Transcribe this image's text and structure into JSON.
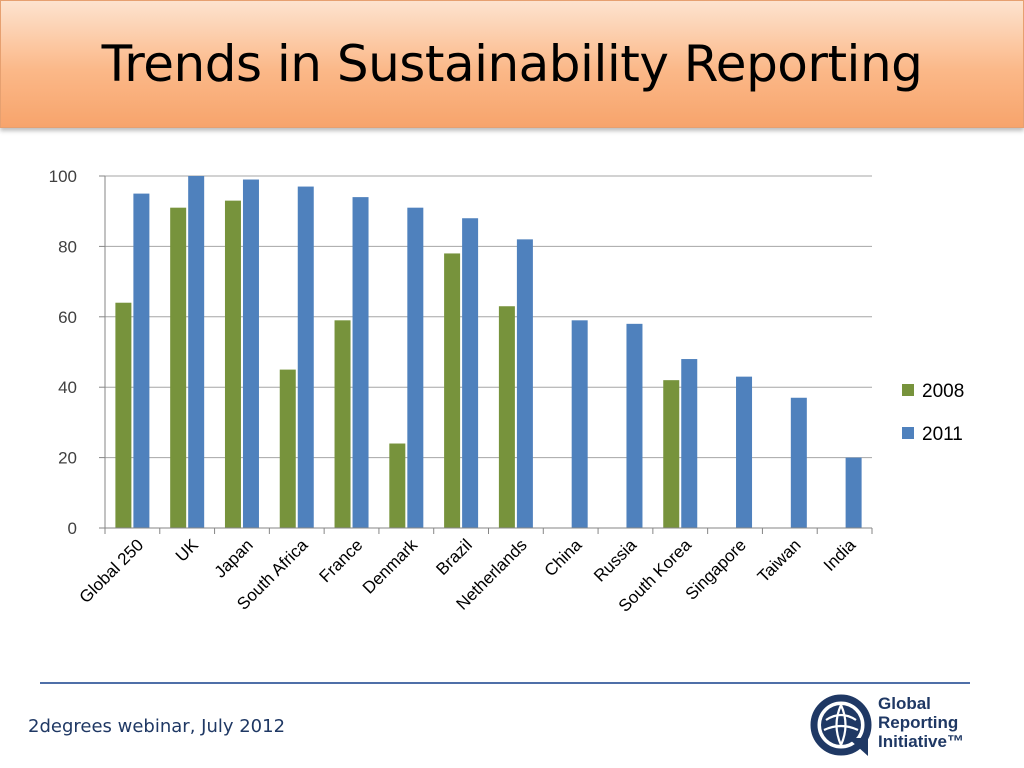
{
  "slide": {
    "title": "Trends in Sustainability Reporting",
    "footer": "2degrees webinar, July 2012"
  },
  "logo": {
    "lines": [
      "Global",
      "Reporting",
      "Initiative™"
    ],
    "icon": "globe-arrow-icon",
    "color": "#1f3864"
  },
  "colors": {
    "series_2008": "#77933c",
    "series_2011": "#4f81bd",
    "gridline": "#a6a6a6",
    "axis": "#868686"
  },
  "chart_data": {
    "type": "bar",
    "categories": [
      "Global 250",
      "UK",
      "Japan",
      "South Africa",
      "France",
      "Denmark",
      "Brazil",
      "Netherlands",
      "China",
      "Russia",
      "South Korea",
      "Singapore",
      "Taiwan",
      "India"
    ],
    "series": [
      {
        "name": "2008",
        "values": [
          64,
          91,
          93,
          45,
          59,
          24,
          78,
          63,
          null,
          null,
          42,
          null,
          null,
          null
        ]
      },
      {
        "name": "2011",
        "values": [
          95,
          100,
          99,
          97,
          94,
          91,
          88,
          82,
          59,
          58,
          48,
          43,
          37,
          20
        ]
      }
    ],
    "ylim": [
      0,
      100
    ],
    "yticks": [
      0,
      20,
      40,
      60,
      80,
      100
    ],
    "grid": true,
    "legend": "right"
  }
}
